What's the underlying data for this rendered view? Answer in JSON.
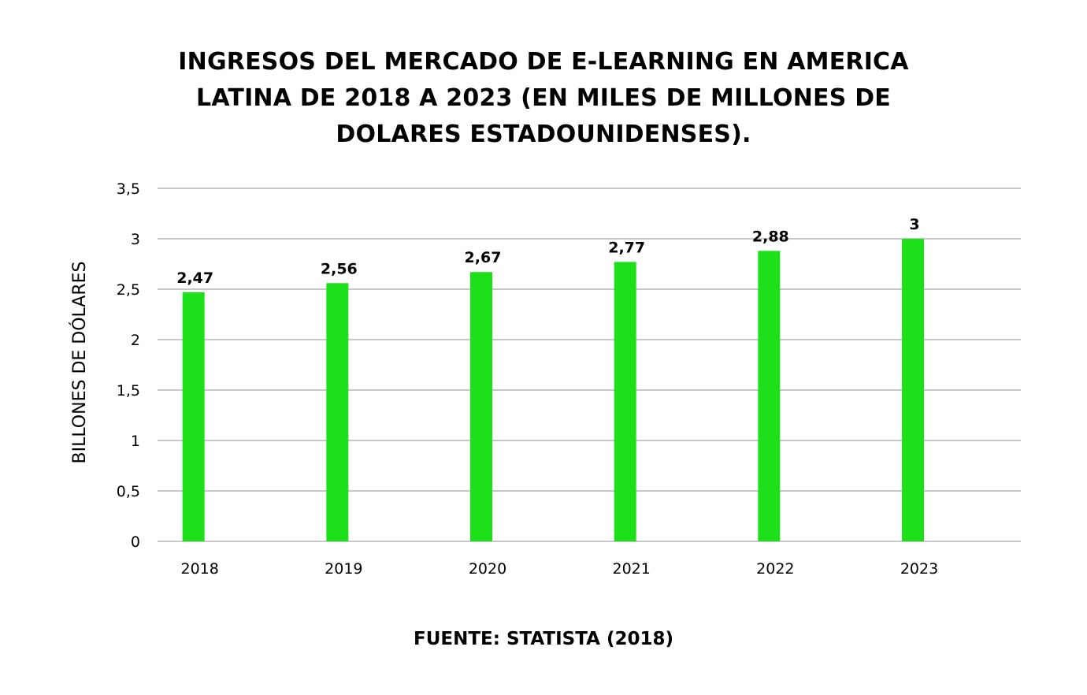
{
  "chart_data": {
    "type": "bar",
    "title": "INGRESOS DEL MERCADO DE E-LEARNING EN AMERICA LATINA DE 2018 A 2023 (EN MILES DE MILLONES DE DOLARES ESTADOUNIDENSES).",
    "xlabel": "",
    "ylabel": "BILLONES DE DÓLARES",
    "categories": [
      "2018",
      "2019",
      "2020",
      "2021",
      "2022",
      "2023"
    ],
    "values": [
      2.47,
      2.56,
      2.67,
      2.77,
      2.88,
      3
    ],
    "value_labels": [
      "2,47",
      "2,56",
      "2,67",
      "2,77",
      "2,88",
      "3"
    ],
    "ylim": [
      0,
      3.5
    ],
    "yticks": [
      0,
      0.5,
      1,
      1.5,
      2,
      2.5,
      3,
      3.5
    ],
    "ytick_labels": [
      "0",
      "0,5",
      "1",
      "1,5",
      "2",
      "2,5",
      "3",
      "3,5"
    ],
    "grid": true,
    "legend": "none",
    "bar_color": "#1ee01a",
    "grid_color": "#c8c8c8"
  },
  "footer": {
    "source": "FUENTE: STATISTA (2018)"
  }
}
